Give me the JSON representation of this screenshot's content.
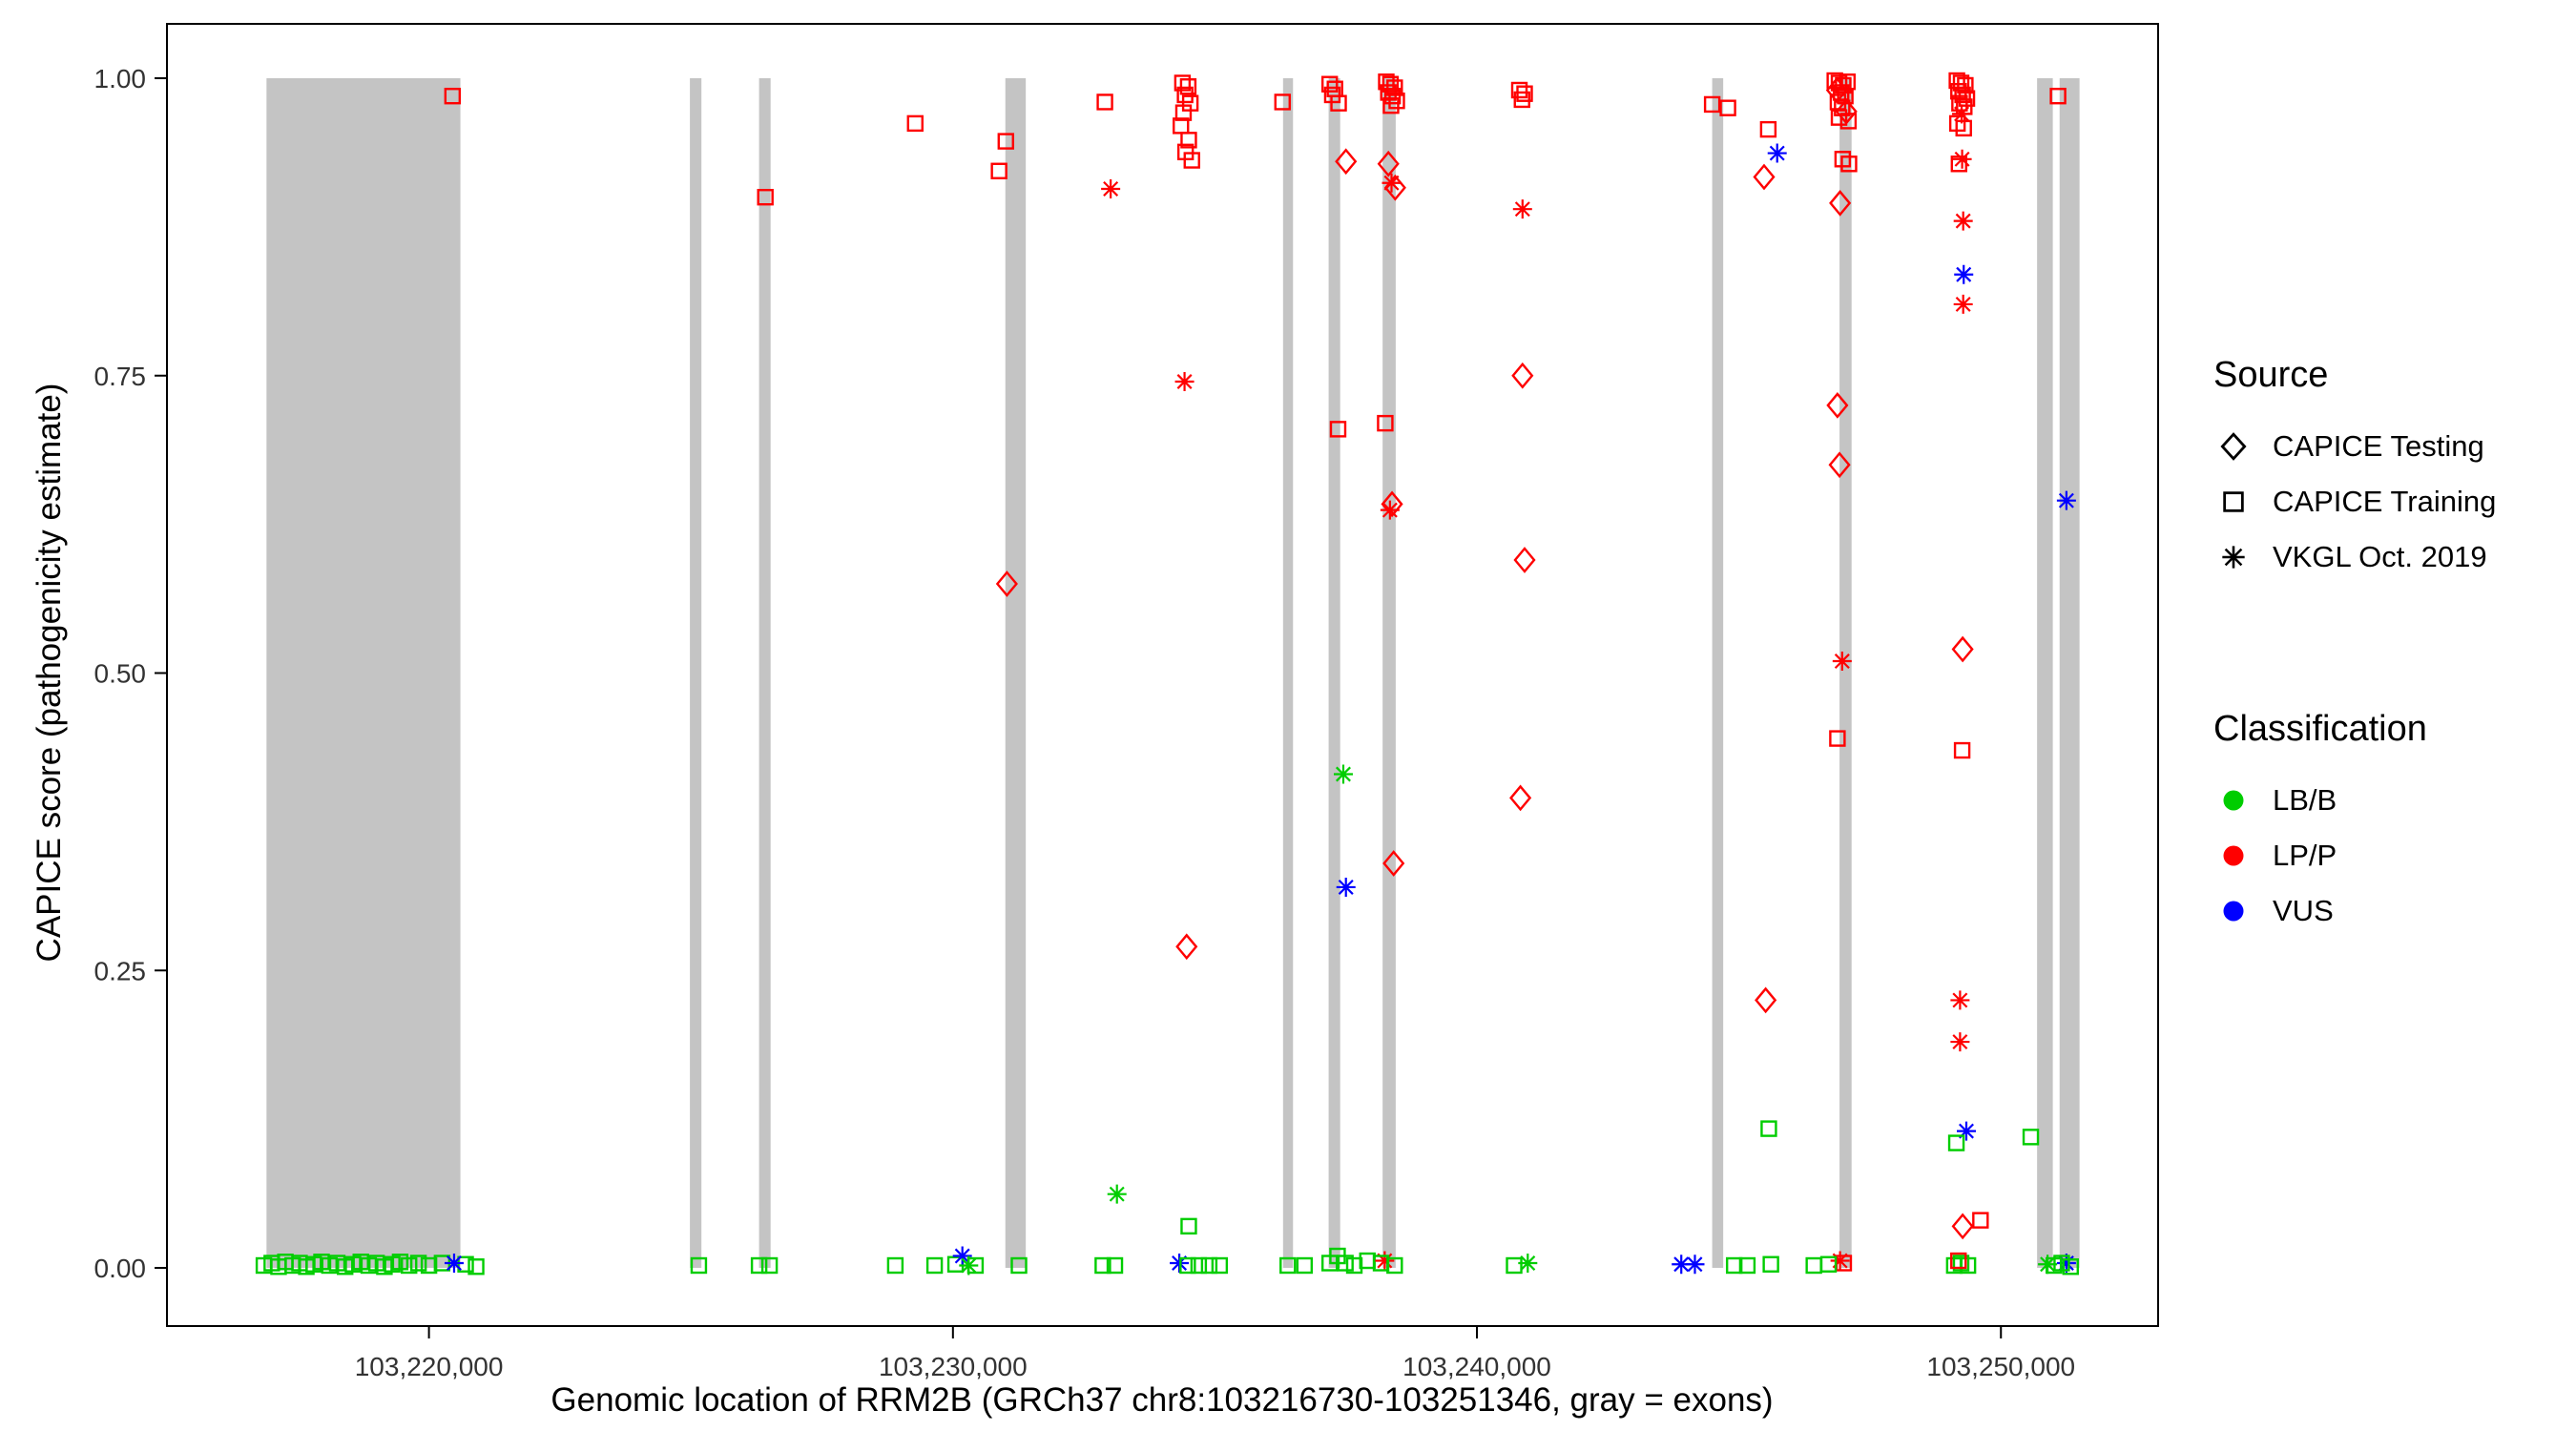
{
  "chart_data": {
    "type": "scatter",
    "xlabel": "Genomic location of RRM2B (GRCh37 chr8:103216730-103251346, gray = exons)",
    "ylabel": "CAPICE score (pathogenicity estimate)",
    "x_range": [
      103215000,
      103253000
    ],
    "y_range": [
      0,
      1
    ],
    "x_ticks": [
      {
        "value": 103220000,
        "label": "103,220,000"
      },
      {
        "value": 103230000,
        "label": "103,230,000"
      },
      {
        "value": 103240000,
        "label": "103,240,000"
      },
      {
        "value": 103250000,
        "label": "103,250,000"
      }
    ],
    "y_ticks": [
      {
        "value": 0.0,
        "label": "0.00"
      },
      {
        "value": 0.25,
        "label": "0.25"
      },
      {
        "value": 0.5,
        "label": "0.50"
      },
      {
        "value": 0.75,
        "label": "0.75"
      },
      {
        "value": 1.0,
        "label": "1.00"
      }
    ],
    "exon_color": "#c4c4c4",
    "exons": [
      [
        103216900,
        103220600
      ],
      [
        103224980,
        103225200
      ],
      [
        103226300,
        103226520
      ],
      [
        103231000,
        103231390
      ],
      [
        103236300,
        103236490
      ],
      [
        103237170,
        103237390
      ],
      [
        103238200,
        103238450
      ],
      [
        103244490,
        103244700
      ],
      [
        103246920,
        103247150
      ],
      [
        103250690,
        103250990
      ],
      [
        103251120,
        103251500
      ]
    ],
    "colors": {
      "g": "#00cd00",
      "r": "#ff0000",
      "b": "#0000ff"
    },
    "shape_map": {
      "D": "CAPICE Testing (diamond)",
      "S": "CAPICE Training (square)",
      "A": "VKGL Oct. 2019 (asterisk)"
    },
    "class_map": {
      "g": "LB/B",
      "r": "LP/P",
      "b": "VUS"
    },
    "points": [
      [
        103216850,
        0.002,
        "S",
        "g"
      ],
      [
        103217000,
        0.004,
        "S",
        "g"
      ],
      [
        103217130,
        0.001,
        "S",
        "g"
      ],
      [
        103217260,
        0.005,
        "S",
        "g"
      ],
      [
        103217400,
        0.002,
        "S",
        "g"
      ],
      [
        103217530,
        0.004,
        "S",
        "g"
      ],
      [
        103217660,
        0.001,
        "S",
        "g"
      ],
      [
        103217800,
        0.003,
        "S",
        "g"
      ],
      [
        103217950,
        0.005,
        "S",
        "g"
      ],
      [
        103218100,
        0.002,
        "S",
        "g"
      ],
      [
        103218250,
        0.004,
        "S",
        "g"
      ],
      [
        103218400,
        0.001,
        "S",
        "g"
      ],
      [
        103218550,
        0.003,
        "S",
        "g"
      ],
      [
        103218700,
        0.005,
        "S",
        "g"
      ],
      [
        103218850,
        0.002,
        "S",
        "g"
      ],
      [
        103219000,
        0.004,
        "S",
        "g"
      ],
      [
        103219150,
        0.001,
        "S",
        "g"
      ],
      [
        103219300,
        0.003,
        "S",
        "g"
      ],
      [
        103219450,
        0.005,
        "S",
        "g"
      ],
      [
        103219620,
        0.002,
        "S",
        "g"
      ],
      [
        103219800,
        0.004,
        "S",
        "g"
      ],
      [
        103220000,
        0.002,
        "S",
        "g"
      ],
      [
        103220250,
        0.004,
        "S",
        "g"
      ],
      [
        103220700,
        0.003,
        "S",
        "g"
      ],
      [
        103220900,
        0.001,
        "S",
        "g"
      ],
      [
        103220480,
        0.004,
        "A",
        "b"
      ],
      [
        103220450,
        0.985,
        "S",
        "r"
      ],
      [
        103225150,
        0.002,
        "S",
        "g"
      ],
      [
        103226300,
        0.002,
        "S",
        "g"
      ],
      [
        103226500,
        0.002,
        "S",
        "g"
      ],
      [
        103226420,
        0.9,
        "S",
        "r"
      ],
      [
        103229280,
        0.962,
        "S",
        "r"
      ],
      [
        103228900,
        0.002,
        "S",
        "g"
      ],
      [
        103229650,
        0.002,
        "S",
        "g"
      ],
      [
        103230050,
        0.003,
        "S",
        "g"
      ],
      [
        103230180,
        0.01,
        "A",
        "b"
      ],
      [
        103230300,
        0.002,
        "A",
        "g"
      ],
      [
        103230430,
        0.002,
        "S",
        "g"
      ],
      [
        103230880,
        0.922,
        "S",
        "r"
      ],
      [
        103231010,
        0.947,
        "S",
        "r"
      ],
      [
        103231030,
        0.575,
        "D",
        "r"
      ],
      [
        103231260,
        0.002,
        "S",
        "g"
      ],
      [
        103232900,
        0.98,
        "S",
        "r"
      ],
      [
        103233010,
        0.907,
        "A",
        "r"
      ],
      [
        103233130,
        0.062,
        "A",
        "g"
      ],
      [
        103232860,
        0.002,
        "S",
        "g"
      ],
      [
        103233090,
        0.002,
        "S",
        "g"
      ],
      [
        103234380,
        0.996,
        "S",
        "r"
      ],
      [
        103234490,
        0.993,
        "S",
        "r"
      ],
      [
        103234430,
        0.986,
        "S",
        "r"
      ],
      [
        103234530,
        0.979,
        "S",
        "r"
      ],
      [
        103234400,
        0.971,
        "S",
        "r"
      ],
      [
        103234350,
        0.96,
        "S",
        "r"
      ],
      [
        103234500,
        0.948,
        "S",
        "r"
      ],
      [
        103234440,
        0.938,
        "S",
        "r"
      ],
      [
        103234560,
        0.931,
        "S",
        "r"
      ],
      [
        103234420,
        0.745,
        "A",
        "r"
      ],
      [
        103234460,
        0.27,
        "D",
        "r"
      ],
      [
        103234500,
        0.035,
        "S",
        "g"
      ],
      [
        103234320,
        0.004,
        "A",
        "b"
      ],
      [
        103234480,
        0.002,
        "S",
        "g"
      ],
      [
        103234690,
        0.002,
        "S",
        "g"
      ],
      [
        103234890,
        0.002,
        "S",
        "g"
      ],
      [
        103235090,
        0.002,
        "S",
        "g"
      ],
      [
        103236290,
        0.98,
        "S",
        "r"
      ],
      [
        103236390,
        0.002,
        "S",
        "g"
      ],
      [
        103236710,
        0.002,
        "S",
        "g"
      ],
      [
        103237190,
        0.995,
        "S",
        "r"
      ],
      [
        103237290,
        0.991,
        "S",
        "r"
      ],
      [
        103237240,
        0.986,
        "S",
        "r"
      ],
      [
        103237360,
        0.979,
        "S",
        "r"
      ],
      [
        103237500,
        0.93,
        "D",
        "r"
      ],
      [
        103237350,
        0.705,
        "S",
        "r"
      ],
      [
        103237450,
        0.415,
        "A",
        "g"
      ],
      [
        103237500,
        0.32,
        "A",
        "b"
      ],
      [
        103237190,
        0.004,
        "S",
        "g"
      ],
      [
        103237340,
        0.01,
        "S",
        "g"
      ],
      [
        103237490,
        0.004,
        "S",
        "g"
      ],
      [
        103237660,
        0.002,
        "S",
        "g"
      ],
      [
        103237910,
        0.006,
        "S",
        "g"
      ],
      [
        103238270,
        0.997,
        "S",
        "r"
      ],
      [
        103238350,
        0.995,
        "S",
        "r"
      ],
      [
        103238430,
        0.992,
        "S",
        "r"
      ],
      [
        103238310,
        0.988,
        "S",
        "r"
      ],
      [
        103238390,
        0.985,
        "S",
        "r"
      ],
      [
        103238470,
        0.981,
        "S",
        "r"
      ],
      [
        103238360,
        0.977,
        "S",
        "r"
      ],
      [
        103238310,
        0.928,
        "D",
        "r"
      ],
      [
        103238370,
        0.912,
        "A",
        "r"
      ],
      [
        103238440,
        0.908,
        "D",
        "r"
      ],
      [
        103238250,
        0.71,
        "S",
        "r"
      ],
      [
        103238340,
        0.637,
        "A",
        "r"
      ],
      [
        103238380,
        0.642,
        "D",
        "r"
      ],
      [
        103238410,
        0.34,
        "D",
        "r"
      ],
      [
        103238240,
        0.006,
        "A",
        "r"
      ],
      [
        103238170,
        0.004,
        "S",
        "g"
      ],
      [
        103238430,
        0.002,
        "S",
        "g"
      ],
      [
        103240810,
        0.99,
        "S",
        "r"
      ],
      [
        103240910,
        0.987,
        "S",
        "r"
      ],
      [
        103240860,
        0.982,
        "S",
        "r"
      ],
      [
        103240870,
        0.89,
        "A",
        "r"
      ],
      [
        103240870,
        0.75,
        "D",
        "r"
      ],
      [
        103240910,
        0.595,
        "D",
        "r"
      ],
      [
        103240830,
        0.395,
        "D",
        "r"
      ],
      [
        103240710,
        0.002,
        "S",
        "g"
      ],
      [
        103240970,
        0.004,
        "A",
        "g"
      ],
      [
        103243900,
        0.003,
        "A",
        "b"
      ],
      [
        103244160,
        0.003,
        "A",
        "b"
      ],
      [
        103244490,
        0.978,
        "S",
        "r"
      ],
      [
        103244790,
        0.975,
        "S",
        "r"
      ],
      [
        103244910,
        0.002,
        "S",
        "g"
      ],
      [
        103245160,
        0.002,
        "S",
        "g"
      ],
      [
        103245610,
        0.003,
        "S",
        "g"
      ],
      [
        103245560,
        0.957,
        "S",
        "r"
      ],
      [
        103245480,
        0.917,
        "D",
        "r"
      ],
      [
        103245730,
        0.937,
        "A",
        "b"
      ],
      [
        103245510,
        0.225,
        "D",
        "r"
      ],
      [
        103245570,
        0.117,
        "S",
        "g"
      ],
      [
        103246830,
        0.998,
        "S",
        "r"
      ],
      [
        103246910,
        0.996,
        "S",
        "r"
      ],
      [
        103246990,
        0.994,
        "S",
        "r"
      ],
      [
        103247070,
        0.997,
        "S",
        "r"
      ],
      [
        103246870,
        0.99,
        "D",
        "r"
      ],
      [
        103246950,
        0.988,
        "S",
        "r"
      ],
      [
        103247030,
        0.985,
        "S",
        "r"
      ],
      [
        103246890,
        0.98,
        "S",
        "r"
      ],
      [
        103246970,
        0.975,
        "S",
        "r"
      ],
      [
        103247050,
        0.972,
        "D",
        "r"
      ],
      [
        103246910,
        0.967,
        "S",
        "r"
      ],
      [
        103247090,
        0.964,
        "S",
        "r"
      ],
      [
        103246980,
        0.932,
        "S",
        "r"
      ],
      [
        103247100,
        0.928,
        "S",
        "r"
      ],
      [
        103246930,
        0.895,
        "D",
        "r"
      ],
      [
        103246880,
        0.725,
        "D",
        "r"
      ],
      [
        103246920,
        0.675,
        "D",
        "r"
      ],
      [
        103246970,
        0.51,
        "A",
        "r"
      ],
      [
        103246880,
        0.445,
        "S",
        "r"
      ],
      [
        103246930,
        0.006,
        "A",
        "r"
      ],
      [
        103247000,
        0.004,
        "S",
        "r"
      ],
      [
        103246430,
        0.002,
        "S",
        "g"
      ],
      [
        103246710,
        0.003,
        "S",
        "g"
      ],
      [
        103249160,
        0.998,
        "S",
        "r"
      ],
      [
        103249240,
        0.996,
        "S",
        "r"
      ],
      [
        103249320,
        0.994,
        "S",
        "r"
      ],
      [
        103249190,
        0.989,
        "S",
        "r"
      ],
      [
        103249270,
        0.986,
        "S",
        "r"
      ],
      [
        103249350,
        0.983,
        "S",
        "r"
      ],
      [
        103249210,
        0.979,
        "S",
        "r"
      ],
      [
        103249300,
        0.976,
        "S",
        "r"
      ],
      [
        103249250,
        0.97,
        "A",
        "r"
      ],
      [
        103249170,
        0.962,
        "S",
        "r"
      ],
      [
        103249290,
        0.958,
        "S",
        "r"
      ],
      [
        103249260,
        0.932,
        "A",
        "r"
      ],
      [
        103249200,
        0.928,
        "S",
        "r"
      ],
      [
        103249280,
        0.88,
        "A",
        "r"
      ],
      [
        103249290,
        0.835,
        "A",
        "b"
      ],
      [
        103249280,
        0.81,
        "A",
        "r"
      ],
      [
        103249270,
        0.52,
        "D",
        "r"
      ],
      [
        103249260,
        0.435,
        "S",
        "r"
      ],
      [
        103249220,
        0.225,
        "A",
        "r"
      ],
      [
        103249220,
        0.19,
        "A",
        "r"
      ],
      [
        103249340,
        0.115,
        "A",
        "b"
      ],
      [
        103249150,
        0.105,
        "S",
        "g"
      ],
      [
        103249270,
        0.035,
        "D",
        "r"
      ],
      [
        103249610,
        0.04,
        "S",
        "r"
      ],
      [
        103249110,
        0.002,
        "S",
        "g"
      ],
      [
        103249240,
        0.004,
        "S",
        "g"
      ],
      [
        103249370,
        0.002,
        "S",
        "g"
      ],
      [
        103249190,
        0.006,
        "S",
        "r"
      ],
      [
        103250570,
        0.11,
        "S",
        "g"
      ],
      [
        103251090,
        0.985,
        "S",
        "r"
      ],
      [
        103251250,
        0.645,
        "A",
        "b"
      ],
      [
        103250890,
        0.003,
        "A",
        "g"
      ],
      [
        103251250,
        0.004,
        "A",
        "b"
      ],
      [
        103251010,
        0.002,
        "S",
        "g"
      ],
      [
        103251160,
        0.004,
        "S",
        "g"
      ],
      [
        103251330,
        0.001,
        "S",
        "g"
      ]
    ],
    "legend_source": {
      "title": "Source",
      "items": [
        {
          "shape": "D",
          "label": "CAPICE Testing"
        },
        {
          "shape": "S",
          "label": "CAPICE Training"
        },
        {
          "shape": "A",
          "label": "VKGL Oct. 2019"
        }
      ]
    },
    "legend_class": {
      "title": "Classification",
      "items": [
        {
          "key": "g",
          "label": "LB/B",
          "color": "#00cd00"
        },
        {
          "key": "r",
          "label": "LP/P",
          "color": "#ff0000"
        },
        {
          "key": "b",
          "label": "VUS",
          "color": "#0000ff"
        }
      ]
    }
  }
}
